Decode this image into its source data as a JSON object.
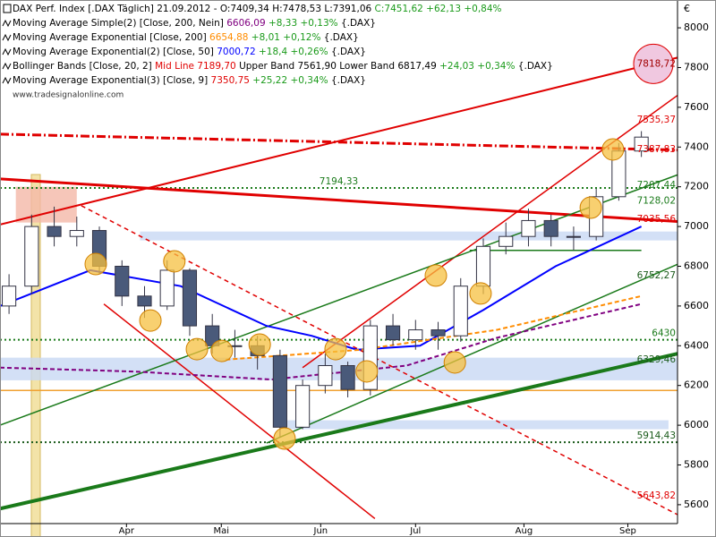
{
  "chart_data": {
    "type": "candlestick",
    "header": {
      "text": "DAX Perf. Index [.DAX  Täglich]  21.09.2012 - O:7409,34 H:7478,53 L:7391,06 ",
      "change": "C:7451,62 +62,13 +0,84%"
    },
    "legend": [
      {
        "name": "Moving Average Simple(2) [Close, 200, Nein] ",
        "value": "6606,09",
        "color": "#800080",
        "change": " +8,33 +0,13% ",
        "suffix": "{.DAX}"
      },
      {
        "name": "Moving Average Exponential [Close, 200] ",
        "value": "6654,88",
        "color": "#ff8c00",
        "change": " +8,01 +0,12% ",
        "suffix": "{.DAX}"
      },
      {
        "name": "Moving Average Exponential(2) [Close, 50] ",
        "value": "7000,72",
        "color": "#0000ff",
        "change": " +18,4 +0,26% ",
        "suffix": "{.DAX}"
      },
      {
        "name": "Bollinger Bands [Close, 20, 2] ",
        "value": "Mid Line 7189,70",
        "color": "#e00000",
        "extra": " Upper Band 7561,90 Lower Band 6817,49",
        "change": " +24,03 +0,34% ",
        "suffix": "{.DAX}"
      },
      {
        "name": "Moving Average Exponential(3) [Close, 9] ",
        "value": "7350,75",
        "color": "#e00000",
        "change": " +25,22 +0,34% ",
        "suffix": "{.DAX}"
      }
    ],
    "watermark": "www.tradesignalonline.com",
    "currency": "€",
    "xlim": [
      0,
      150
    ],
    "xticks": [
      {
        "value": 28,
        "label": "Apr"
      },
      {
        "value": 49,
        "label": "Mai"
      },
      {
        "value": 71,
        "label": "Jun"
      },
      {
        "value": 92,
        "label": "Jul"
      },
      {
        "value": 116,
        "label": "Aug"
      },
      {
        "value": 139,
        "label": "Sep"
      }
    ],
    "ylim": [
      5505,
      8140
    ],
    "yticks": [
      5600,
      5800,
      6000,
      6200,
      6400,
      6600,
      6800,
      7000,
      7200,
      7400,
      7600,
      7800,
      8000
    ],
    "x": [
      2,
      7,
      12,
      17,
      22,
      27,
      32,
      37,
      42,
      47,
      52,
      57,
      62,
      67,
      72,
      77,
      82,
      87,
      92,
      97,
      102,
      107,
      112,
      117,
      122,
      127,
      132,
      137,
      142
    ],
    "open": [
      6600,
      6700,
      7000,
      6950,
      6980,
      6800,
      6650,
      6600,
      6780,
      6500,
      6400,
      6400,
      6350,
      5990,
      6200,
      6300,
      6180,
      6500,
      6430,
      6480,
      6450,
      6700,
      6900,
      6950,
      7030,
      6950,
      6950,
      7150,
      7380
    ],
    "high": [
      6760,
      7060,
      7100,
      7050,
      7000,
      6830,
      6700,
      6830,
      6790,
      6560,
      6480,
      6450,
      6380,
      6230,
      6360,
      6320,
      6530,
      6560,
      6530,
      6520,
      6740,
      6940,
      7020,
      7090,
      7060,
      7000,
      7190,
      7420,
      7480
    ],
    "low": [
      6560,
      6660,
      6900,
      6900,
      6760,
      6600,
      6540,
      6580,
      6450,
      6360,
      6340,
      6280,
      5940,
      5980,
      6160,
      6140,
      6150,
      6400,
      6380,
      6380,
      6420,
      6660,
      6860,
      6900,
      6900,
      6880,
      6930,
      7130,
      7350
    ],
    "close": [
      6700,
      7000,
      6950,
      6980,
      6800,
      6650,
      6600,
      6780,
      6500,
      6400,
      6400,
      6350,
      5990,
      6200,
      6300,
      6180,
      6500,
      6430,
      6480,
      6450,
      6700,
      6900,
      6950,
      7030,
      6950,
      6950,
      7150,
      7380,
      7450
    ],
    "series": [
      {
        "color": "#0000ff",
        "x": [
          0,
          20,
          40,
          59,
          69,
          79,
          93,
          107,
          123,
          142
        ],
        "values": [
          6600,
          6780,
          6700,
          6500,
          6450,
          6380,
          6400,
          6580,
          6800,
          7000
        ]
      },
      {
        "color": "#ff8c00",
        "dash": true,
        "x": [
          50,
          80,
          110,
          142
        ],
        "values": [
          6330,
          6380,
          6480,
          6650
        ]
      },
      {
        "color": "#800080",
        "dash": true,
        "x": [
          0,
          30,
          60,
          90,
          110,
          142
        ],
        "values": [
          6290,
          6270,
          6230,
          6300,
          6440,
          6610
        ]
      }
    ],
    "zones": [
      {
        "from": 31,
        "to": 150,
        "low": 6930,
        "high": 6975,
        "color": "#c8d8f4"
      },
      {
        "from": 0,
        "to": 150,
        "low": 6226,
        "high": 6340,
        "color": "#c8d8f4"
      },
      {
        "from": 63,
        "to": 148,
        "low": 5980,
        "high": 6025,
        "color": "#c8d8f4"
      },
      {
        "from": 3.5,
        "to": 17,
        "low": 7020,
        "high": 7200,
        "color": "#f4b8a8"
      }
    ],
    "trendlines": [
      {
        "from": [
          0,
          7010
        ],
        "to": [
          150,
          7850
        ],
        "color": "#e00000",
        "width": 2
      },
      {
        "from": [
          0,
          7465
        ],
        "to": [
          150,
          7385
        ],
        "color": "#e00000",
        "width": 3,
        "dash": "10,3,2,3"
      },
      {
        "from": [
          0,
          7240
        ],
        "to": [
          150,
          7025
        ],
        "color": "#e00000",
        "width": 3
      },
      {
        "from": [
          23,
          6610
        ],
        "to": [
          83,
          5530
        ],
        "color": "#e00000",
        "width": 1.5
      },
      {
        "from": [
          18,
          7105
        ],
        "to": [
          150,
          5550
        ],
        "color": "#e00000",
        "width": 1.5,
        "dash": "5,4"
      },
      {
        "from": [
          67,
          6290
        ],
        "to": [
          150,
          7660
        ],
        "color": "#e00000",
        "width": 1.5
      },
      {
        "from": [
          0,
          5580
        ],
        "to": [
          150,
          6360
        ],
        "color": "#1a7a1a",
        "width": 4
      },
      {
        "from": [
          0,
          6000
        ],
        "to": [
          150,
          7260
        ],
        "color": "#1a7a1a",
        "width": 1.5
      },
      {
        "from": [
          59,
          5910
        ],
        "to": [
          150,
          6810
        ],
        "color": "#1a7a1a",
        "width": 1.5
      },
      {
        "from": [
          104,
          6880
        ],
        "to": [
          142,
          6880
        ],
        "color": "#1a7a1a",
        "width": 1.5
      }
    ],
    "levels": [
      {
        "value": 7194.33,
        "label": "7194,33",
        "color": "#1a7a1a",
        "dotted": true,
        "at": 75
      },
      {
        "value": 6430,
        "label": "6430",
        "color": "#1a7a1a",
        "dotted": true
      },
      {
        "value": 5914.43,
        "label": "5914,43",
        "color": "#1a5a1a",
        "dotted": true
      },
      {
        "value": 6175,
        "color": "#f0a030"
      },
      {
        "value": 7818.72,
        "label": "7818,72",
        "color": "#a00000"
      },
      {
        "value": 7535.37,
        "label": "7535,37",
        "color": "#e00000"
      },
      {
        "value": 7387.83,
        "label": "7387,83",
        "color": "#e00000"
      },
      {
        "value": 7207.44,
        "label": "7207,44",
        "color": "#1a7a1a"
      },
      {
        "value": 7128.02,
        "label": "7128,02",
        "color": "#1a7a1a"
      },
      {
        "value": 7035.56,
        "label": "7035,56",
        "color": "#e00000"
      },
      {
        "value": 6752.27,
        "label": "6752,27",
        "color": "#1a5a1a"
      },
      {
        "value": 6329.46,
        "label": "6329,46",
        "color": "#1a5a1a"
      },
      {
        "value": 5643.82,
        "label": "5643,82",
        "color": "#e00000"
      }
    ],
    "markers": {
      "x": [
        21.2,
        38.6,
        33.3,
        43.6,
        49.1,
        57.5,
        74.3,
        81.2,
        96.5,
        106.4,
        100.7,
        130.8,
        135.7,
        63.0
      ],
      "values": [
        6811,
        6825,
        6527,
        6383,
        6374,
        6406,
        6383,
        6271,
        6753,
        6663,
        6316,
        7095,
        7388,
        5933
      ]
    }
  }
}
